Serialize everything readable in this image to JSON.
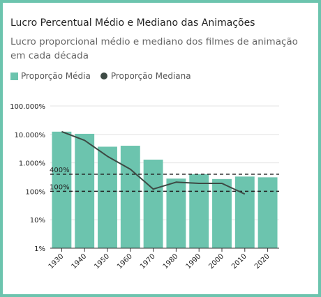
{
  "chart_data": {
    "type": "bar",
    "title": "Lucro Percentual Médio e Mediano das Animações",
    "subtitle": "Lucro proporcional médio e mediano dos filmes de animação em cada década",
    "categories": [
      "1930",
      "1940",
      "1950",
      "1960",
      "1970",
      "1980",
      "1990",
      "2000",
      "2010",
      "2020"
    ],
    "y_scale": "log",
    "ylim": [
      1,
      100000
    ],
    "y_ticks": [
      {
        "value": 1,
        "label": "1%"
      },
      {
        "value": 10,
        "label": "10%"
      },
      {
        "value": 100,
        "label": "100%"
      },
      {
        "value": 1000,
        "label": "1.000%"
      },
      {
        "value": 10000,
        "label": "10.000%"
      },
      {
        "value": 100000,
        "label": "100.000%"
      }
    ],
    "series": [
      {
        "name": "Proporção Média",
        "type": "bar",
        "color": "#6cc4ae",
        "values": [
          12500,
          10500,
          3700,
          4000,
          1300,
          280,
          400,
          270,
          330,
          310
        ]
      },
      {
        "name": "Proporção Mediana",
        "type": "line",
        "color": "#3d4a44",
        "values": [
          12500,
          6200,
          1700,
          600,
          120,
          210,
          190,
          190,
          80,
          null
        ]
      }
    ],
    "reference_lines": [
      {
        "value": 400,
        "label": "400%"
      },
      {
        "value": 100,
        "label": "100%"
      }
    ],
    "grid": "horizontal",
    "legend": "top-left"
  }
}
